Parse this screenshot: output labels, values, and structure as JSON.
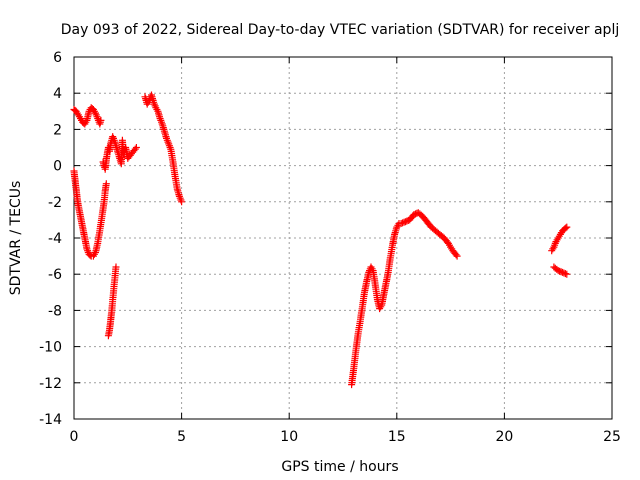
{
  "chart_data": {
    "type": "scatter",
    "title": "Day 093 of 2022, Sidereal Day-to-day VTEC variation (SDTVAR) for receiver aplj",
    "xlabel": "GPS time / hours",
    "ylabel": "SDTVAR / TECUs",
    "xlim": [
      0,
      25
    ],
    "ylim": [
      -14,
      6
    ],
    "xticks": [
      0,
      5,
      10,
      15,
      20,
      25
    ],
    "yticks": [
      -14,
      -12,
      -10,
      -8,
      -6,
      -4,
      -2,
      0,
      2,
      4,
      6
    ],
    "grid": true,
    "marker": "plus",
    "color": "#ff0000",
    "segments": [
      [
        [
          0.0,
          3.1
        ],
        [
          0.1,
          3.0
        ],
        [
          0.2,
          2.8
        ],
        [
          0.3,
          2.6
        ],
        [
          0.4,
          2.4
        ],
        [
          0.5,
          2.3
        ],
        [
          0.6,
          2.5
        ],
        [
          0.7,
          3.0
        ],
        [
          0.8,
          3.2
        ],
        [
          0.9,
          3.1
        ],
        [
          1.0,
          2.9
        ],
        [
          1.1,
          2.6
        ],
        [
          1.2,
          2.3
        ],
        [
          1.25,
          2.5
        ]
      ],
      [
        [
          0.0,
          -0.3
        ],
        [
          0.05,
          -0.8
        ],
        [
          0.1,
          -1.3
        ],
        [
          0.15,
          -1.8
        ],
        [
          0.2,
          -2.2
        ],
        [
          0.3,
          -2.8
        ],
        [
          0.4,
          -3.4
        ],
        [
          0.5,
          -4.0
        ],
        [
          0.6,
          -4.6
        ],
        [
          0.7,
          -4.9
        ],
        [
          0.8,
          -5.0
        ],
        [
          0.9,
          -5.0
        ],
        [
          1.0,
          -4.8
        ],
        [
          1.1,
          -4.3
        ],
        [
          1.2,
          -3.6
        ],
        [
          1.3,
          -2.8
        ],
        [
          1.4,
          -2.0
        ],
        [
          1.45,
          -1.4
        ],
        [
          1.5,
          -1.0
        ]
      ],
      [
        [
          1.35,
          0.2
        ],
        [
          1.4,
          0.0
        ],
        [
          1.45,
          -0.2
        ],
        [
          1.5,
          0.3
        ],
        [
          1.55,
          0.7
        ],
        [
          1.6,
          1.0
        ],
        [
          1.65,
          0.8
        ],
        [
          1.7,
          1.2
        ],
        [
          1.8,
          1.6
        ],
        [
          1.9,
          1.3
        ],
        [
          2.0,
          0.9
        ],
        [
          2.1,
          0.5
        ],
        [
          2.2,
          0.1
        ],
        [
          2.25,
          1.4
        ],
        [
          2.3,
          0.6
        ],
        [
          2.4,
          1.0
        ],
        [
          2.5,
          0.4
        ],
        [
          2.9,
          1.0
        ]
      ],
      [
        [
          1.6,
          -9.4
        ],
        [
          1.65,
          -9.1
        ],
        [
          1.7,
          -8.6
        ],
        [
          1.75,
          -8.1
        ],
        [
          1.8,
          -7.4
        ],
        [
          1.85,
          -6.8
        ],
        [
          1.9,
          -6.2
        ],
        [
          1.95,
          -5.6
        ]
      ],
      [
        [
          3.3,
          3.8
        ],
        [
          3.4,
          3.4
        ],
        [
          3.5,
          3.6
        ],
        [
          3.6,
          3.9
        ],
        [
          3.7,
          3.5
        ],
        [
          3.8,
          3.2
        ],
        [
          3.9,
          3.0
        ],
        [
          4.0,
          2.6
        ],
        [
          4.1,
          2.3
        ],
        [
          4.2,
          1.9
        ],
        [
          4.3,
          1.5
        ],
        [
          4.4,
          1.2
        ],
        [
          4.5,
          0.9
        ],
        [
          4.6,
          0.2
        ],
        [
          4.7,
          -0.6
        ],
        [
          4.8,
          -1.3
        ],
        [
          4.9,
          -1.7
        ],
        [
          5.0,
          -2.0
        ]
      ],
      [
        [
          12.9,
          -12.1
        ],
        [
          13.0,
          -11.2
        ],
        [
          13.1,
          -10.2
        ],
        [
          13.2,
          -9.3
        ],
        [
          13.3,
          -8.6
        ],
        [
          13.4,
          -7.8
        ],
        [
          13.5,
          -7.0
        ],
        [
          13.6,
          -6.4
        ],
        [
          13.7,
          -5.9
        ],
        [
          13.8,
          -5.6
        ],
        [
          13.9,
          -5.8
        ],
        [
          14.0,
          -6.6
        ],
        [
          14.1,
          -7.4
        ],
        [
          14.2,
          -7.9
        ],
        [
          14.3,
          -7.7
        ],
        [
          14.4,
          -7.1
        ],
        [
          14.5,
          -6.5
        ],
        [
          14.6,
          -5.9
        ],
        [
          14.7,
          -5.1
        ],
        [
          14.8,
          -4.4
        ],
        [
          14.9,
          -3.8
        ],
        [
          15.0,
          -3.4
        ],
        [
          15.1,
          -3.2
        ],
        [
          15.2,
          -3.2
        ],
        [
          15.4,
          -3.1
        ],
        [
          15.6,
          -3.0
        ],
        [
          15.8,
          -2.7
        ],
        [
          16.0,
          -2.6
        ],
        [
          16.2,
          -2.8
        ],
        [
          16.4,
          -3.1
        ],
        [
          16.6,
          -3.4
        ],
        [
          16.8,
          -3.6
        ],
        [
          17.0,
          -3.8
        ],
        [
          17.2,
          -4.0
        ],
        [
          17.4,
          -4.3
        ],
        [
          17.6,
          -4.7
        ],
        [
          17.8,
          -5.0
        ]
      ],
      [
        [
          22.2,
          -4.7
        ],
        [
          22.3,
          -4.5
        ],
        [
          22.4,
          -4.2
        ],
        [
          22.5,
          -4.0
        ],
        [
          22.6,
          -3.8
        ],
        [
          22.7,
          -3.6
        ],
        [
          22.8,
          -3.5
        ],
        [
          22.9,
          -3.4
        ]
      ],
      [
        [
          22.3,
          -5.6
        ],
        [
          22.5,
          -5.8
        ],
        [
          22.7,
          -5.9
        ],
        [
          22.9,
          -6.0
        ]
      ]
    ]
  }
}
